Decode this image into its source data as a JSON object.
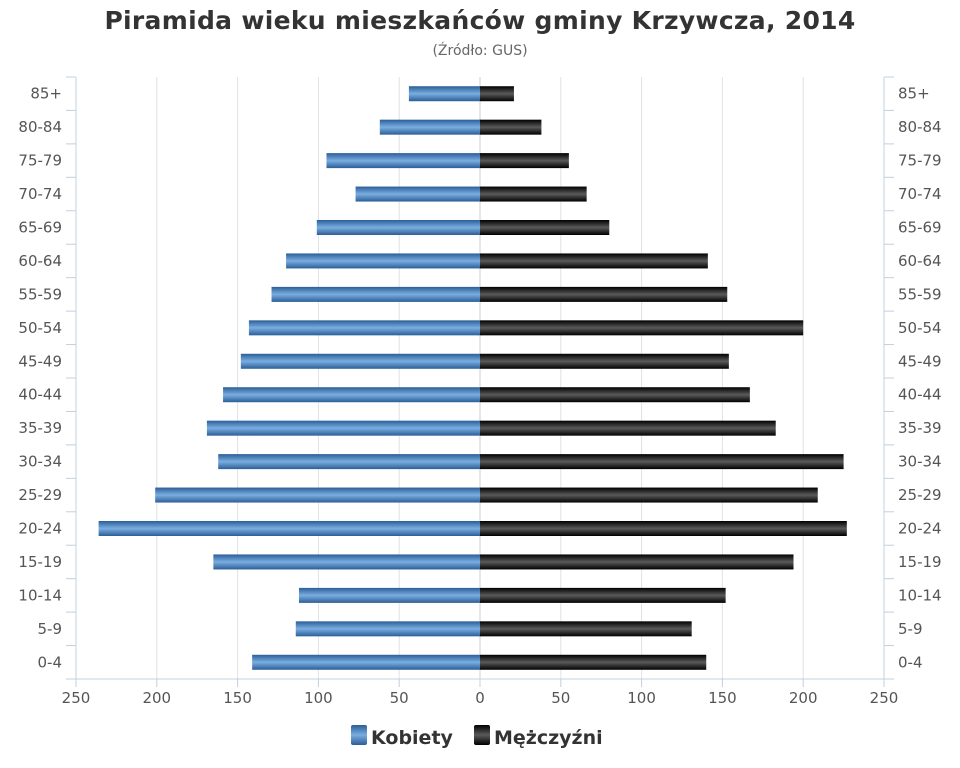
{
  "chart_data": {
    "type": "bar",
    "orientation": "horizontal",
    "title": "Piramida wieku mieszkańców gminy Krzywcza, 2014",
    "subtitle": "(Źródło: GUS)",
    "categories": [
      "85+",
      "80-84",
      "75-79",
      "70-74",
      "65-69",
      "60-64",
      "55-59",
      "50-54",
      "45-49",
      "40-44",
      "35-39",
      "30-34",
      "25-29",
      "20-24",
      "15-19",
      "10-14",
      "5-9",
      "0-4"
    ],
    "series": [
      {
        "name": "Kobiety",
        "color": "#3d78b4",
        "side": "left",
        "values": [
          44,
          62,
          95,
          77,
          101,
          120,
          129,
          143,
          148,
          159,
          169,
          162,
          201,
          236,
          165,
          112,
          114,
          141
        ]
      },
      {
        "name": "Mężczyźni",
        "color": "#1a1a1a",
        "side": "right",
        "values": [
          21,
          38,
          55,
          66,
          80,
          141,
          153,
          200,
          154,
          167,
          183,
          225,
          209,
          227,
          194,
          152,
          131,
          140
        ]
      }
    ],
    "xlim": [
      -250,
      250
    ],
    "x_tick_values": [
      -250,
      -200,
      -150,
      -100,
      -50,
      0,
      50,
      100,
      150,
      200,
      250
    ],
    "x_tick_labels": [
      "250",
      "200",
      "150",
      "100",
      "50",
      "0",
      "50",
      "100",
      "150",
      "200",
      "250"
    ],
    "grid": true,
    "legend_position": "bottom-center"
  }
}
